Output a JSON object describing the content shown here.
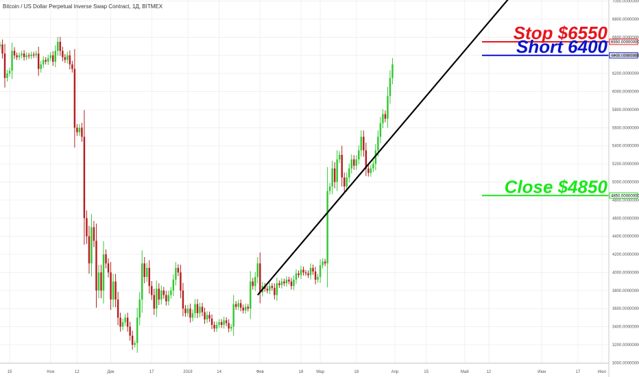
{
  "chart_data": {
    "type": "candlestick",
    "title": "Bitcoin / US Dollar Perpetual Inverse Swap Contract, 1Д, BITMEX",
    "ylim": [
      2950,
      7050
    ],
    "y_ticks": [
      7000,
      6800,
      6600,
      6400,
      6200,
      6000,
      5800,
      5600,
      5400,
      5200,
      5000,
      4800,
      4600,
      4400,
      4200,
      4000,
      3800,
      3600,
      3400,
      3200,
      3000
    ],
    "y_tick_labels": [
      "7000.00000000",
      "6800.00000000",
      "6600.00000000",
      "6400.00000000",
      "6200.00000000",
      "6000.00000000",
      "5800.00000000",
      "5600.00000000",
      "5400.00000000",
      "5200.00000000",
      "5000.00000000",
      "4800.00000000",
      "4600.00000000",
      "4400.00000000",
      "4200.00000000",
      "4000.00000000",
      "3800.00000000",
      "3600.00000000",
      "3400.00000000",
      "3200.00000000",
      "3000.00000000"
    ],
    "x_range": [
      0,
      250
    ],
    "x_ticks": [
      {
        "day": 4,
        "label": "15"
      },
      {
        "day": 21,
        "label": "Ноя"
      },
      {
        "day": 32,
        "label": "12"
      },
      {
        "day": 46,
        "label": "Дек"
      },
      {
        "day": 63,
        "label": "17"
      },
      {
        "day": 78,
        "label": "2019"
      },
      {
        "day": 91,
        "label": "14"
      },
      {
        "day": 108,
        "label": "Фев"
      },
      {
        "day": 125,
        "label": "18"
      },
      {
        "day": 133,
        "label": "Мар"
      },
      {
        "day": 148,
        "label": "18"
      },
      {
        "day": 164,
        "label": "Апр"
      },
      {
        "day": 177,
        "label": "15"
      },
      {
        "day": 193,
        "label": "Май"
      },
      {
        "day": 203,
        "label": "12"
      },
      {
        "day": 225,
        "label": "Июн"
      },
      {
        "day": 240,
        "label": "17"
      },
      {
        "day": 250,
        "label": "Июл"
      }
    ],
    "candles": [
      {
        "o": 6500,
        "c": 6520
      },
      {
        "o": 6520,
        "c": 6420
      },
      {
        "o": 6420,
        "c": 6150
      },
      {
        "o": 6150,
        "c": 6200
      },
      {
        "o": 6200,
        "c": 6230
      },
      {
        "o": 6230,
        "c": 6450
      },
      {
        "o": 6450,
        "c": 6400
      },
      {
        "o": 6400,
        "c": 6380
      },
      {
        "o": 6380,
        "c": 6400
      },
      {
        "o": 6400,
        "c": 6420
      },
      {
        "o": 6420,
        "c": 6380
      },
      {
        "o": 6380,
        "c": 6400
      },
      {
        "o": 6400,
        "c": 6390
      },
      {
        "o": 6390,
        "c": 6410
      },
      {
        "o": 6410,
        "c": 6400
      },
      {
        "o": 6400,
        "c": 6420
      },
      {
        "o": 6420,
        "c": 6250
      },
      {
        "o": 6250,
        "c": 6300
      },
      {
        "o": 6300,
        "c": 6350
      },
      {
        "o": 6350,
        "c": 6330
      },
      {
        "o": 6330,
        "c": 6370
      },
      {
        "o": 6370,
        "c": 6400
      },
      {
        "o": 6400,
        "c": 6330
      },
      {
        "o": 6330,
        "c": 6450
      },
      {
        "o": 6450,
        "c": 6550
      },
      {
        "o": 6550,
        "c": 6450
      },
      {
        "o": 6450,
        "c": 6380
      },
      {
        "o": 6380,
        "c": 6350
      },
      {
        "o": 6350,
        "c": 6400
      },
      {
        "o": 6400,
        "c": 6300
      },
      {
        "o": 6300,
        "c": 6250
      },
      {
        "o": 6250,
        "c": 5600
      },
      {
        "o": 5600,
        "c": 5550
      },
      {
        "o": 5550,
        "c": 5600
      },
      {
        "o": 5600,
        "c": 5500
      },
      {
        "o": 5500,
        "c": 4600
      },
      {
        "o": 4600,
        "c": 4400
      },
      {
        "o": 4400,
        "c": 4100
      },
      {
        "o": 4100,
        "c": 4500
      },
      {
        "o": 4500,
        "c": 4350
      },
      {
        "o": 4350,
        "c": 3800
      },
      {
        "o": 3800,
        "c": 4000
      },
      {
        "o": 4000,
        "c": 3800
      },
      {
        "o": 3800,
        "c": 4200
      },
      {
        "o": 4200,
        "c": 4100
      },
      {
        "o": 4100,
        "c": 4000
      },
      {
        "o": 4000,
        "c": 3700
      },
      {
        "o": 3700,
        "c": 3900
      },
      {
        "o": 3900,
        "c": 3700
      },
      {
        "o": 3700,
        "c": 3500
      },
      {
        "o": 3500,
        "c": 3400
      },
      {
        "o": 3400,
        "c": 3450
      },
      {
        "o": 3450,
        "c": 3500
      },
      {
        "o": 3500,
        "c": 3400
      },
      {
        "o": 3400,
        "c": 3300
      },
      {
        "o": 3300,
        "c": 3200
      },
      {
        "o": 3200,
        "c": 3220
      },
      {
        "o": 3220,
        "c": 3500
      },
      {
        "o": 3500,
        "c": 3700
      },
      {
        "o": 3700,
        "c": 4100
      },
      {
        "o": 4100,
        "c": 3950
      },
      {
        "o": 3950,
        "c": 4050
      },
      {
        "o": 4050,
        "c": 3850
      },
      {
        "o": 3850,
        "c": 3750
      },
      {
        "o": 3750,
        "c": 3600
      },
      {
        "o": 3600,
        "c": 3820
      },
      {
        "o": 3820,
        "c": 3700
      },
      {
        "o": 3700,
        "c": 3800
      },
      {
        "o": 3800,
        "c": 3750
      },
      {
        "o": 3750,
        "c": 3680
      },
      {
        "o": 3680,
        "c": 3750
      },
      {
        "o": 3750,
        "c": 3800
      },
      {
        "o": 3800,
        "c": 3920
      },
      {
        "o": 3920,
        "c": 4050
      },
      {
        "o": 4050,
        "c": 4000
      },
      {
        "o": 4000,
        "c": 3800
      },
      {
        "o": 3800,
        "c": 3600
      },
      {
        "o": 3600,
        "c": 3550
      },
      {
        "o": 3550,
        "c": 3600
      },
      {
        "o": 3600,
        "c": 3500
      },
      {
        "o": 3500,
        "c": 3550
      },
      {
        "o": 3550,
        "c": 3650
      },
      {
        "o": 3650,
        "c": 3550
      },
      {
        "o": 3550,
        "c": 3620
      },
      {
        "o": 3620,
        "c": 3560
      },
      {
        "o": 3560,
        "c": 3480
      },
      {
        "o": 3480,
        "c": 3530
      },
      {
        "o": 3530,
        "c": 3490
      },
      {
        "o": 3490,
        "c": 3420
      },
      {
        "o": 3420,
        "c": 3380
      },
      {
        "o": 3380,
        "c": 3420
      },
      {
        "o": 3420,
        "c": 3450
      },
      {
        "o": 3450,
        "c": 3420
      },
      {
        "o": 3420,
        "c": 3470
      },
      {
        "o": 3470,
        "c": 3440
      },
      {
        "o": 3440,
        "c": 3380
      },
      {
        "o": 3380,
        "c": 3400
      },
      {
        "o": 3400,
        "c": 3650
      },
      {
        "o": 3650,
        "c": 3620
      },
      {
        "o": 3620,
        "c": 3660
      },
      {
        "o": 3660,
        "c": 3610
      },
      {
        "o": 3610,
        "c": 3580
      },
      {
        "o": 3580,
        "c": 3620
      },
      {
        "o": 3620,
        "c": 3600
      },
      {
        "o": 3600,
        "c": 3900
      },
      {
        "o": 3900,
        "c": 3850
      },
      {
        "o": 3850,
        "c": 3950
      },
      {
        "o": 3950,
        "c": 4100
      },
      {
        "o": 4100,
        "c": 3780
      },
      {
        "o": 3780,
        "c": 3850
      },
      {
        "o": 3850,
        "c": 3820
      },
      {
        "o": 3820,
        "c": 3800
      },
      {
        "o": 3800,
        "c": 3850
      },
      {
        "o": 3850,
        "c": 3830
      },
      {
        "o": 3830,
        "c": 3750
      },
      {
        "o": 3750,
        "c": 3880
      },
      {
        "o": 3880,
        "c": 3860
      },
      {
        "o": 3860,
        "c": 3900
      },
      {
        "o": 3900,
        "c": 3880
      },
      {
        "o": 3880,
        "c": 3920
      },
      {
        "o": 3920,
        "c": 3900
      },
      {
        "o": 3900,
        "c": 3850
      },
      {
        "o": 3850,
        "c": 3920
      },
      {
        "o": 3920,
        "c": 3990
      },
      {
        "o": 3990,
        "c": 3970
      },
      {
        "o": 3970,
        "c": 4030
      },
      {
        "o": 4030,
        "c": 4000
      },
      {
        "o": 4000,
        "c": 3990
      },
      {
        "o": 3990,
        "c": 3970
      },
      {
        "o": 3970,
        "c": 4050
      },
      {
        "o": 4050,
        "c": 4010
      },
      {
        "o": 4010,
        "c": 3920
      },
      {
        "o": 3920,
        "c": 3950
      },
      {
        "o": 3950,
        "c": 4080
      },
      {
        "o": 4080,
        "c": 4120
      },
      {
        "o": 4120,
        "c": 4100
      },
      {
        "o": 4100,
        "c": 4900
      },
      {
        "o": 4900,
        "c": 4950
      },
      {
        "o": 4950,
        "c": 5150
      },
      {
        "o": 5150,
        "c": 5000
      },
      {
        "o": 5000,
        "c": 5250
      },
      {
        "o": 5250,
        "c": 5300
      },
      {
        "o": 5300,
        "c": 5050
      },
      {
        "o": 5050,
        "c": 4950
      },
      {
        "o": 4950,
        "c": 5050
      },
      {
        "o": 5050,
        "c": 5150
      },
      {
        "o": 5150,
        "c": 5250
      },
      {
        "o": 5250,
        "c": 5180
      },
      {
        "o": 5180,
        "c": 5250
      },
      {
        "o": 5250,
        "c": 5350
      },
      {
        "o": 5350,
        "c": 5500
      },
      {
        "o": 5500,
        "c": 5350
      },
      {
        "o": 5350,
        "c": 5150
      },
      {
        "o": 5150,
        "c": 5100
      },
      {
        "o": 5100,
        "c": 5150
      },
      {
        "o": 5150,
        "c": 5200
      },
      {
        "o": 5200,
        "c": 5350
      },
      {
        "o": 5350,
        "c": 5500
      },
      {
        "o": 5500,
        "c": 5650
      },
      {
        "o": 5650,
        "c": 5750
      },
      {
        "o": 5750,
        "c": 5700
      },
      {
        "o": 5700,
        "c": 5950
      },
      {
        "o": 5950,
        "c": 6150
      },
      {
        "o": 6150,
        "c": 6300
      }
    ]
  },
  "annotations": {
    "stop": {
      "label": "Stop $6550",
      "price": 6550,
      "price_label": "6550.00000000",
      "color": "#e8141c"
    },
    "short": {
      "label": "Short 6400",
      "price": 6400,
      "price_label": "6400.00000000",
      "color": "#0a14cc"
    },
    "close": {
      "label": "Close $4850",
      "price": 4850,
      "price_label": "4850.00000000",
      "color": "#18e818"
    }
  },
  "trendline": {
    "x1": 107,
    "y1": 3750,
    "x2": 212,
    "y2": 7050,
    "color": "#000000"
  },
  "colors": {
    "up": "#32c832",
    "down": "#b41e1e",
    "grid": "#f0f0f0",
    "axis": "#c8c8c8"
  }
}
